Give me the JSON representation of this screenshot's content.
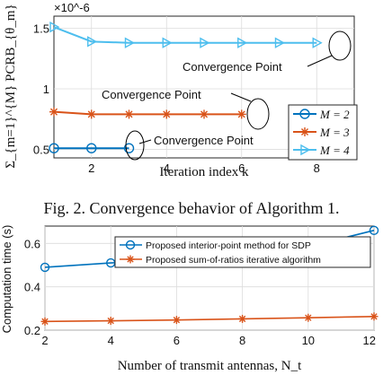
{
  "colors": {
    "blue": "#0072BD",
    "orange": "#D95319",
    "cyan": "#4DBEEE"
  },
  "caption": "Fig. 2.  Convergence behavior of Algorithm 1.",
  "chart_data": [
    {
      "type": "line",
      "xlabel": "Iteration index k",
      "ylabel": "Σ_{m=1}^{M} PCRB_{θ_m}",
      "y_exponent_label": "×10^-6",
      "xlim": [
        1,
        9
      ],
      "ylim": [
        0.43,
        1.6
      ],
      "xticks": [
        "2",
        "4",
        "6",
        "8"
      ],
      "yticks": [
        "0.5",
        "1",
        "1.5"
      ],
      "grid": true,
      "legend_position": "bottom-right",
      "x": [
        1,
        2,
        3,
        4,
        5,
        6,
        7,
        8
      ],
      "series": [
        {
          "name": "M = 2",
          "marker": "circle",
          "color": "#0072BD",
          "x": [
            1,
            2,
            3
          ],
          "values": [
            0.51,
            0.51,
            0.51
          ]
        },
        {
          "name": "M = 3",
          "marker": "star",
          "color": "#D95319",
          "x": [
            1,
            2,
            3,
            4,
            5,
            6
          ],
          "values": [
            0.81,
            0.79,
            0.79,
            0.79,
            0.79,
            0.79
          ]
        },
        {
          "name": "M = 4",
          "marker": "triangle-right",
          "color": "#4DBEEE",
          "x": [
            1,
            2,
            3,
            4,
            5,
            6,
            7,
            8
          ],
          "values": [
            1.51,
            1.39,
            1.38,
            1.38,
            1.38,
            1.38,
            1.38,
            1.38
          ]
        }
      ],
      "annotations": [
        "Convergence Point",
        "Convergence Point",
        "Convergence Point"
      ]
    },
    {
      "type": "line",
      "xlabel": "Number of transmit antennas, N_t",
      "ylabel": "Computation time (s)",
      "xlim": [
        2,
        12
      ],
      "ylim": [
        0.2,
        0.68
      ],
      "xticks": [
        "2",
        "4",
        "6",
        "8",
        "10",
        "12"
      ],
      "yticks": [
        "0.2",
        "0.4",
        "0.6"
      ],
      "grid": true,
      "legend_position": "top-right",
      "series": [
        {
          "name": "Proposed interior-point method for SDP",
          "marker": "circle",
          "color": "#0072BD",
          "x": [
            2,
            4,
            6,
            8,
            10,
            12
          ],
          "values": [
            0.49,
            0.51,
            0.525,
            0.55,
            0.585,
            0.66
          ]
        },
        {
          "name": "Proposed sum-of-ratios iterative algorithm",
          "marker": "star",
          "color": "#D95319",
          "x": [
            2,
            4,
            6,
            8,
            10,
            12
          ],
          "values": [
            0.24,
            0.243,
            0.247,
            0.252,
            0.257,
            0.263
          ]
        }
      ]
    }
  ]
}
